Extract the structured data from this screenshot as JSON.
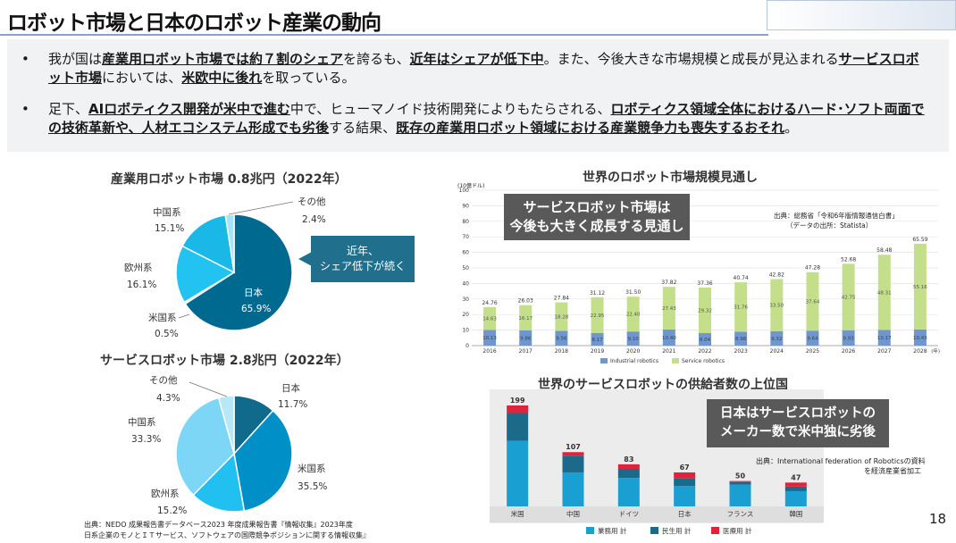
{
  "page": {
    "title": "ロボット市場と日本のロボット産業の動向",
    "page_number": "18"
  },
  "summary": {
    "b1": {
      "t1": "我が国は",
      "u1": "産業用ロボット市場では約７割のシェア",
      "t2": "を誇るも、",
      "u2": "近年はシェアが低下中",
      "t3": "。また、今後大きな市場規模と成長が見込まれる",
      "u3": "サービスロボット市場",
      "t4": "においては、",
      "u4": "米欧中に後れ",
      "t5": "を取っている。"
    },
    "b2": {
      "t1": "足下、",
      "u1": "AIロボティクス開発が米中で進む",
      "t2": "中で、ヒューマノイド技術開発によりもたらされる、",
      "u2": "ロボティクス領域全体におけるハード･ソフト両面での技術革新や、人材エコシステム形成でも劣後",
      "t3": "する結果、",
      "u3": "既存の産業用ロボット領域における産業競争力も喪失するおそれ",
      "t4": "。"
    }
  },
  "industrial_pie": {
    "title": "産業用ロボット市場 0.8兆円（2022年）",
    "callout": [
      "近年、",
      "シェア低下が続く"
    ],
    "colors": [
      "#00698f",
      "#f2f2f2",
      "#22c3f0",
      "#1ab8e6",
      "#a6e4f7"
    ]
  },
  "service_pie": {
    "title": "サービスロボット市場 2.8兆円（2022年）",
    "colors": [
      "#0f6a8c",
      "#0090c8",
      "#22c0f0",
      "#7dd6f6",
      "#b8e8f8"
    ]
  },
  "pie_source": [
    "出典：NEDO 成果報告書データベース2023 年度成果報告書『情報収集』2023年度",
    "日系企業のモノとＩＴサービス、ソフトウェアの国際競争ポジションに関する情報収集』"
  ],
  "market": {
    "title": "世界のロボット市場規模見通し",
    "unit": "(10億ドル)",
    "callout": [
      "サービスロボット市場は",
      "今後も大きく成長する見通し"
    ],
    "source": [
      "出典：総務省「令和6年版情報通信白書」",
      "（データの出所：Statista）"
    ],
    "year_unit": "(年)"
  },
  "suppliers": {
    "title": "世界のサービスロボットの供給者数の上位国",
    "callout": [
      "日本はサービスロボットの",
      "メーカー数で米中独に劣後"
    ],
    "source": [
      "出典：International federation of Roboticsの資料",
      "を経済産業省加工"
    ],
    "colors": {
      "business": "#1a9fd3",
      "consumer": "#1b6a8a",
      "medical": "#e0233b"
    }
  },
  "chart_data": [
    {
      "type": "pie",
      "title": "産業用ロボット市場 0.8兆円（2022年）",
      "slices": [
        {
          "label": "日本",
          "value": 65.9,
          "value_label": "65.9%"
        },
        {
          "label": "米国系",
          "value": 0.5,
          "value_label": "0.5%"
        },
        {
          "label": "欧州系",
          "value": 16.1,
          "value_label": "16.1%"
        },
        {
          "label": "中国系",
          "value": 15.1,
          "value_label": "15.1%"
        },
        {
          "label": "その他",
          "value": 2.4,
          "value_label": "2.4%"
        }
      ]
    },
    {
      "type": "pie",
      "title": "サービスロボット市場 2.8兆円（2022年）",
      "slices": [
        {
          "label": "日本",
          "value": 11.7,
          "value_label": "11.7%"
        },
        {
          "label": "米国系",
          "value": 35.5,
          "value_label": "35.5%"
        },
        {
          "label": "欧州系",
          "value": 15.2,
          "value_label": "15.2%"
        },
        {
          "label": "中国系",
          "value": 33.3,
          "value_label": "33.3%"
        },
        {
          "label": "その他",
          "value": 4.3,
          "value_label": "4.3%"
        }
      ]
    },
    {
      "type": "bar",
      "title": "世界のロボット市場規模見通し",
      "ylabel": "(10億ドル)",
      "ylim": [
        0,
        100
      ],
      "yticks": [
        "0",
        "10",
        "20",
        "30",
        "40",
        "50",
        "60",
        "70",
        "80",
        "90",
        "100"
      ],
      "categories": [
        "2016",
        "2017",
        "2018",
        "2019",
        "2020",
        "2021",
        "2022",
        "2023",
        "2024",
        "2025",
        "2026",
        "2027",
        "2028"
      ],
      "totals": [
        "24.76",
        "26.03",
        "27.84",
        "31.12",
        "31.50",
        "37.82",
        "37.36",
        "40.74",
        "42.82",
        "47.28",
        "52.68",
        "58.48",
        "65.59"
      ],
      "series": [
        {
          "name": "Industrial robotics",
          "color": "#7096d0",
          "values": [
            10.13,
            9.86,
            9.56,
            8.17,
            9.1,
            10.4,
            8.04,
            8.98,
            9.32,
            9.64,
            9.93,
            10.17,
            10.43
          ],
          "labels": [
            "10.13",
            "9.86",
            "9.56",
            "8.17",
            "9.10",
            "10.40",
            "8.04",
            "8.98",
            "9.32",
            "9.64",
            "9.93",
            "10.17",
            "10.43"
          ]
        },
        {
          "name": "Service robotics",
          "color": "#c4df8a",
          "values": [
            14.63,
            16.17,
            18.28,
            22.95,
            22.4,
            27.43,
            29.32,
            31.76,
            33.5,
            37.64,
            42.75,
            48.31,
            55.16
          ],
          "labels": [
            "14.63",
            "16.17",
            "18.28",
            "22.95",
            "22.40",
            "27.43",
            "29.32",
            "31.76",
            "33.50",
            "37.64",
            "42.75",
            "48.31",
            "55.16"
          ]
        }
      ]
    },
    {
      "type": "bar",
      "title": "世界のサービスロボットの供給者数の上位国",
      "categories": [
        "米国",
        "中国",
        "ドイツ",
        "日本",
        "フランス",
        "韓国"
      ],
      "totals": [
        199,
        107,
        83,
        67,
        50,
        47
      ],
      "series": [
        {
          "name": "業務用 計",
          "values": [
            129,
            67,
            56,
            40,
            43,
            30
          ]
        },
        {
          "name": "民生用 計",
          "values": [
            55,
            33,
            18,
            16,
            5,
            9
          ]
        },
        {
          "name": "医療用 計",
          "values": [
            15,
            7,
            9,
            11,
            2,
            8
          ]
        }
      ]
    }
  ]
}
